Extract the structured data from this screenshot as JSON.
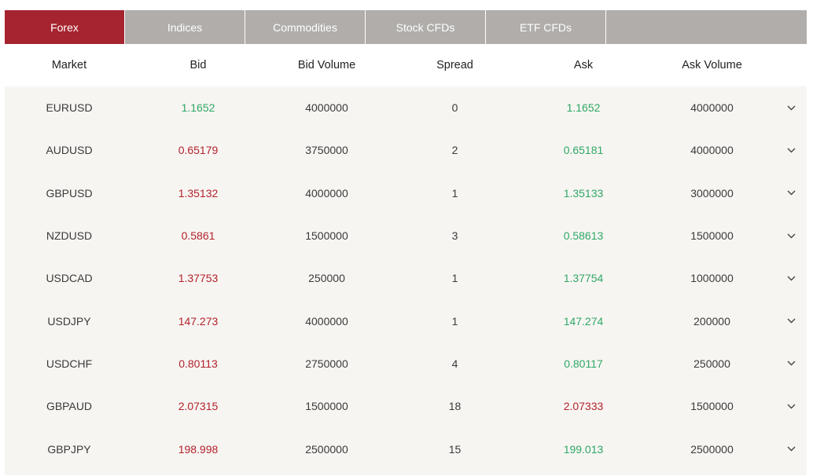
{
  "tabs": [
    {
      "label": "Forex",
      "active": true
    },
    {
      "label": "Indices",
      "active": false
    },
    {
      "label": "Commodities",
      "active": false
    },
    {
      "label": "Stock CFDs",
      "active": false
    },
    {
      "label": "ETF CFDs",
      "active": false
    }
  ],
  "columns": {
    "market": "Market",
    "bid": "Bid",
    "bid_volume": "Bid Volume",
    "spread": "Spread",
    "ask": "Ask",
    "ask_volume": "Ask Volume"
  },
  "colors": {
    "active_tab": "#a6242f",
    "inactive_tab": "#b0adaa",
    "up": "#2fa866",
    "down": "#b2222c"
  },
  "rows": [
    {
      "market": "EURUSD",
      "bid": "1.1652",
      "bid_dir": "up",
      "bid_volume": "4000000",
      "spread": "0",
      "ask": "1.1652",
      "ask_dir": "up",
      "ask_volume": "4000000",
      "expand_icon": "chevron-down-icon"
    },
    {
      "market": "AUDUSD",
      "bid": "0.65179",
      "bid_dir": "down",
      "bid_volume": "3750000",
      "spread": "2",
      "ask": "0.65181",
      "ask_dir": "up",
      "ask_volume": "4000000",
      "expand_icon": "chevron-down-icon"
    },
    {
      "market": "GBPUSD",
      "bid": "1.35132",
      "bid_dir": "down",
      "bid_volume": "4000000",
      "spread": "1",
      "ask": "1.35133",
      "ask_dir": "up",
      "ask_volume": "3000000",
      "expand_icon": "chevron-down-icon"
    },
    {
      "market": "NZDUSD",
      "bid": "0.5861",
      "bid_dir": "down",
      "bid_volume": "1500000",
      "spread": "3",
      "ask": "0.58613",
      "ask_dir": "up",
      "ask_volume": "1500000",
      "expand_icon": "chevron-down-icon"
    },
    {
      "market": "USDCAD",
      "bid": "1.37753",
      "bid_dir": "down",
      "bid_volume": "250000",
      "spread": "1",
      "ask": "1.37754",
      "ask_dir": "up",
      "ask_volume": "1000000",
      "expand_icon": "chevron-down-icon"
    },
    {
      "market": "USDJPY",
      "bid": "147.273",
      "bid_dir": "down",
      "bid_volume": "4000000",
      "spread": "1",
      "ask": "147.274",
      "ask_dir": "up",
      "ask_volume": "200000",
      "expand_icon": "chevron-down-icon"
    },
    {
      "market": "USDCHF",
      "bid": "0.80113",
      "bid_dir": "down",
      "bid_volume": "2750000",
      "spread": "4",
      "ask": "0.80117",
      "ask_dir": "up",
      "ask_volume": "250000",
      "expand_icon": "chevron-down-icon"
    },
    {
      "market": "GBPAUD",
      "bid": "2.07315",
      "bid_dir": "down",
      "bid_volume": "1500000",
      "spread": "18",
      "ask": "2.07333",
      "ask_dir": "down",
      "ask_volume": "1500000",
      "expand_icon": "chevron-down-icon"
    },
    {
      "market": "GBPJPY",
      "bid": "198.998",
      "bid_dir": "down",
      "bid_volume": "2500000",
      "spread": "15",
      "ask": "199.013",
      "ask_dir": "up",
      "ask_volume": "2500000",
      "expand_icon": "chevron-down-icon"
    }
  ]
}
